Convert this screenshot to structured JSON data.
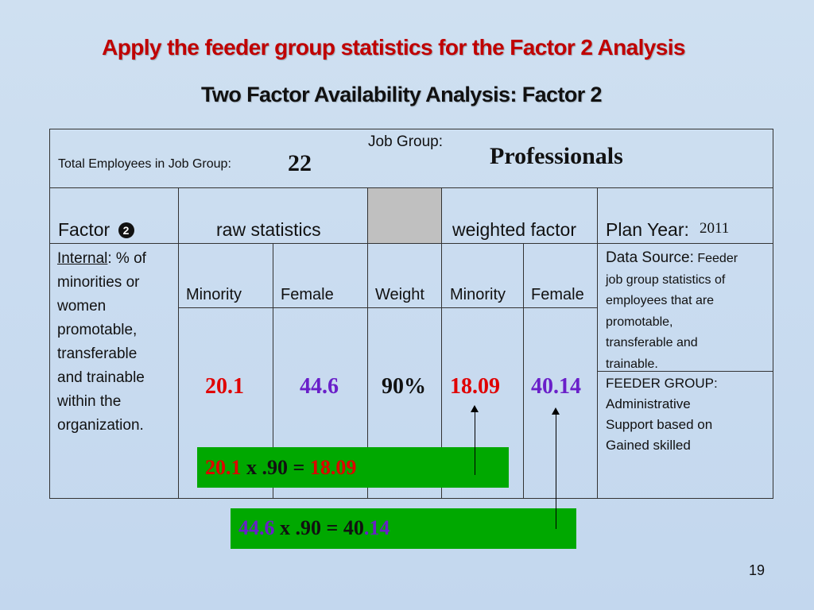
{
  "slide": {
    "title": "Apply the feeder group statistics for the Factor 2 Analysis",
    "subtitle": "Two Factor Availability Analysis: Factor 2",
    "page_number": "19"
  },
  "table": {
    "job_group_label": "Job Group:",
    "job_group_value": "Professionals",
    "total_employees_label": "Total Employees in Job Group:",
    "total_employees_value": "22",
    "factor_label": "Factor",
    "factor_icon": "dingbat-circled-two",
    "raw_statistics_label": "raw statistics",
    "weighted_factor_label": "weighted factor",
    "plan_year_label": "Plan Year:",
    "plan_year_value": "2011",
    "internal_label": "Internal",
    "internal_desc_lines": [
      ": % of",
      "minorities or",
      "women",
      "promotable,",
      "transferable",
      "and trainable",
      "within the",
      "organization."
    ],
    "col_headers": {
      "raw_minority": "Minority",
      "raw_female": "Female",
      "weight": "Weight",
      "wf_minority": "Minority",
      "wf_female": "Female"
    },
    "data_source_label": "Data Source:",
    "data_source_lines": [
      "Feeder",
      "job group statistics of",
      "employees that are",
      "promotable,",
      "transferable and",
      "trainable."
    ],
    "feeder_group_lines": [
      "FEEDER GROUP:",
      "Administrative",
      "Support based on",
      "Gained skilled"
    ],
    "values": {
      "raw_minority": "20.1",
      "raw_female": "44.6",
      "weight": "90%",
      "wf_minority": "18.09",
      "wf_female": "40.14"
    }
  },
  "equations": {
    "minority": {
      "a": "20.1",
      "mid": " x .90 = ",
      "b": "18.09"
    },
    "female": {
      "a": "44.6",
      "mid": " x .90 = 40",
      "b": ".14"
    }
  },
  "colors": {
    "title": "#c00000",
    "red_value": "#e00000",
    "purple_value": "#6a1fc9",
    "equation_box": "#00a800",
    "weight_header_fill": "#c0c0c0"
  }
}
